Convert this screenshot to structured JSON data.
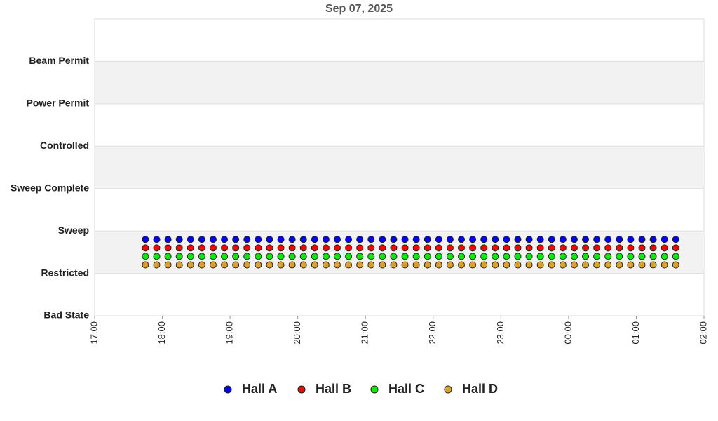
{
  "chart_data": {
    "type": "scatter",
    "title": "Sep 07, 2025",
    "x": [
      "17:45",
      "17:55",
      "18:05",
      "18:15",
      "18:25",
      "18:35",
      "18:45",
      "18:55",
      "19:05",
      "19:15",
      "19:25",
      "19:35",
      "19:45",
      "19:55",
      "20:05",
      "20:15",
      "20:25",
      "20:35",
      "20:45",
      "20:55",
      "21:05",
      "21:15",
      "21:25",
      "21:35",
      "21:45",
      "21:55",
      "22:05",
      "22:15",
      "22:25",
      "22:35",
      "22:45",
      "22:55",
      "23:05",
      "23:15",
      "23:25",
      "23:35",
      "23:45",
      "23:55",
      "00:05",
      "00:15",
      "00:25",
      "00:35",
      "00:45",
      "00:55",
      "01:05",
      "01:15",
      "01:25",
      "01:35"
    ],
    "series": [
      {
        "name": "Hall A",
        "color": "#0000ff",
        "values": [
          1.8,
          1.8,
          1.8,
          1.8,
          1.8,
          1.8,
          1.8,
          1.8,
          1.8,
          1.8,
          1.8,
          1.8,
          1.8,
          1.8,
          1.8,
          1.8,
          1.8,
          1.8,
          1.8,
          1.8,
          1.8,
          1.8,
          1.8,
          1.8,
          1.8,
          1.8,
          1.8,
          1.8,
          1.8,
          1.8,
          1.8,
          1.8,
          1.8,
          1.8,
          1.8,
          1.8,
          1.8,
          1.8,
          1.8,
          1.8,
          1.8,
          1.8,
          1.8,
          1.8,
          1.8,
          1.8,
          1.8,
          1.8
        ]
      },
      {
        "name": "Hall B",
        "color": "#ff0000",
        "values": [
          1.6,
          1.6,
          1.6,
          1.6,
          1.6,
          1.6,
          1.6,
          1.6,
          1.6,
          1.6,
          1.6,
          1.6,
          1.6,
          1.6,
          1.6,
          1.6,
          1.6,
          1.6,
          1.6,
          1.6,
          1.6,
          1.6,
          1.6,
          1.6,
          1.6,
          1.6,
          1.6,
          1.6,
          1.6,
          1.6,
          1.6,
          1.6,
          1.6,
          1.6,
          1.6,
          1.6,
          1.6,
          1.6,
          1.6,
          1.6,
          1.6,
          1.6,
          1.6,
          1.6,
          1.6,
          1.6,
          1.6,
          1.6
        ]
      },
      {
        "name": "Hall C",
        "color": "#00ee00",
        "values": [
          1.4,
          1.4,
          1.4,
          1.4,
          1.4,
          1.4,
          1.4,
          1.4,
          1.4,
          1.4,
          1.4,
          1.4,
          1.4,
          1.4,
          1.4,
          1.4,
          1.4,
          1.4,
          1.4,
          1.4,
          1.4,
          1.4,
          1.4,
          1.4,
          1.4,
          1.4,
          1.4,
          1.4,
          1.4,
          1.4,
          1.4,
          1.4,
          1.4,
          1.4,
          1.4,
          1.4,
          1.4,
          1.4,
          1.4,
          1.4,
          1.4,
          1.4,
          1.4,
          1.4,
          1.4,
          1.4,
          1.4,
          1.4
        ]
      },
      {
        "name": "Hall D",
        "color": "#daa030",
        "values": [
          1.2,
          1.2,
          1.2,
          1.2,
          1.2,
          1.2,
          1.2,
          1.2,
          1.2,
          1.2,
          1.2,
          1.2,
          1.2,
          1.2,
          1.2,
          1.2,
          1.2,
          1.2,
          1.2,
          1.2,
          1.2,
          1.2,
          1.2,
          1.2,
          1.2,
          1.2,
          1.2,
          1.2,
          1.2,
          1.2,
          1.2,
          1.2,
          1.2,
          1.2,
          1.2,
          1.2,
          1.2,
          1.2,
          1.2,
          1.2,
          1.2,
          1.2,
          1.2,
          1.2,
          1.2,
          1.2,
          1.2,
          1.2
        ]
      }
    ],
    "xlim": [
      "17:00",
      "02:00"
    ],
    "xticks": [
      "17:00",
      "18:00",
      "19:00",
      "20:00",
      "21:00",
      "22:00",
      "23:00",
      "00:00",
      "01:00",
      "02:00"
    ],
    "ylim": [
      0,
      7
    ],
    "yticks": [
      {
        "value": 0,
        "label": "Bad State"
      },
      {
        "value": 1,
        "label": "Restricted"
      },
      {
        "value": 2,
        "label": "Sweep"
      },
      {
        "value": 3,
        "label": "Sweep Complete"
      },
      {
        "value": 4,
        "label": "Controlled"
      },
      {
        "value": 5,
        "label": "Power Permit"
      },
      {
        "value": 6,
        "label": "Beam Permit"
      }
    ],
    "grid": true,
    "legend": "bottom"
  }
}
